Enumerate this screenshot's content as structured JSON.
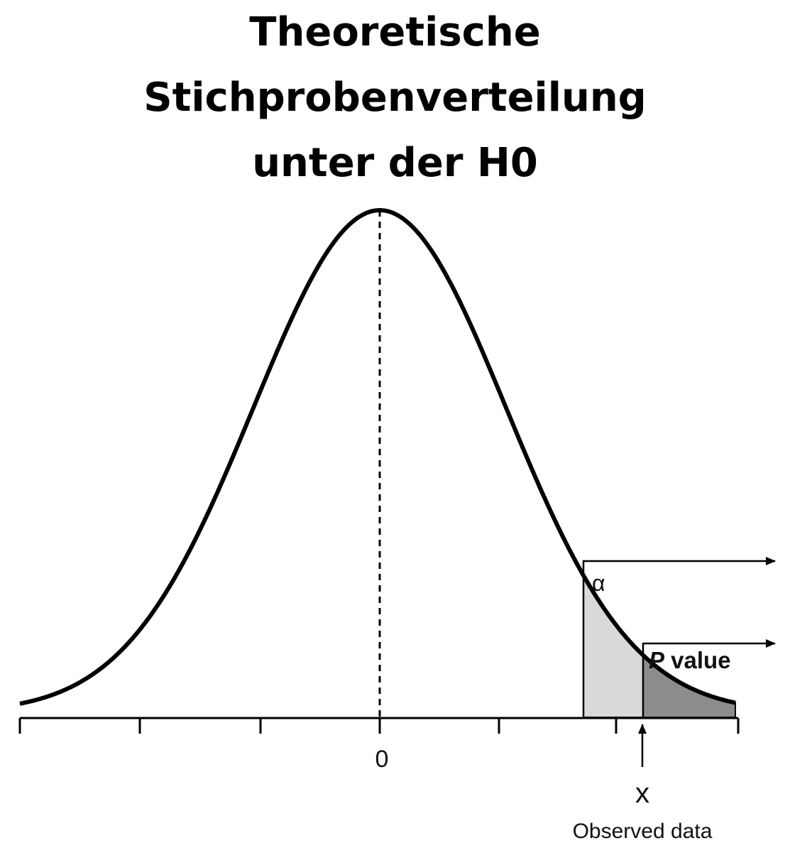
{
  "title": {
    "line1": "Theoretische",
    "line2": "Stichprobenverteilung",
    "line3": "unter der H0"
  },
  "axis": {
    "zero_label": "0",
    "tick_count": 7
  },
  "annotations": {
    "alpha_label": "α",
    "p_label_italic": "P",
    "p_label_rest": " value",
    "observed_symbol": "x",
    "observed_caption": "Observed data"
  },
  "colors": {
    "curve": "#000000",
    "alpha_region": "#d9d9d9",
    "p_region": "#8c8c8c"
  }
}
